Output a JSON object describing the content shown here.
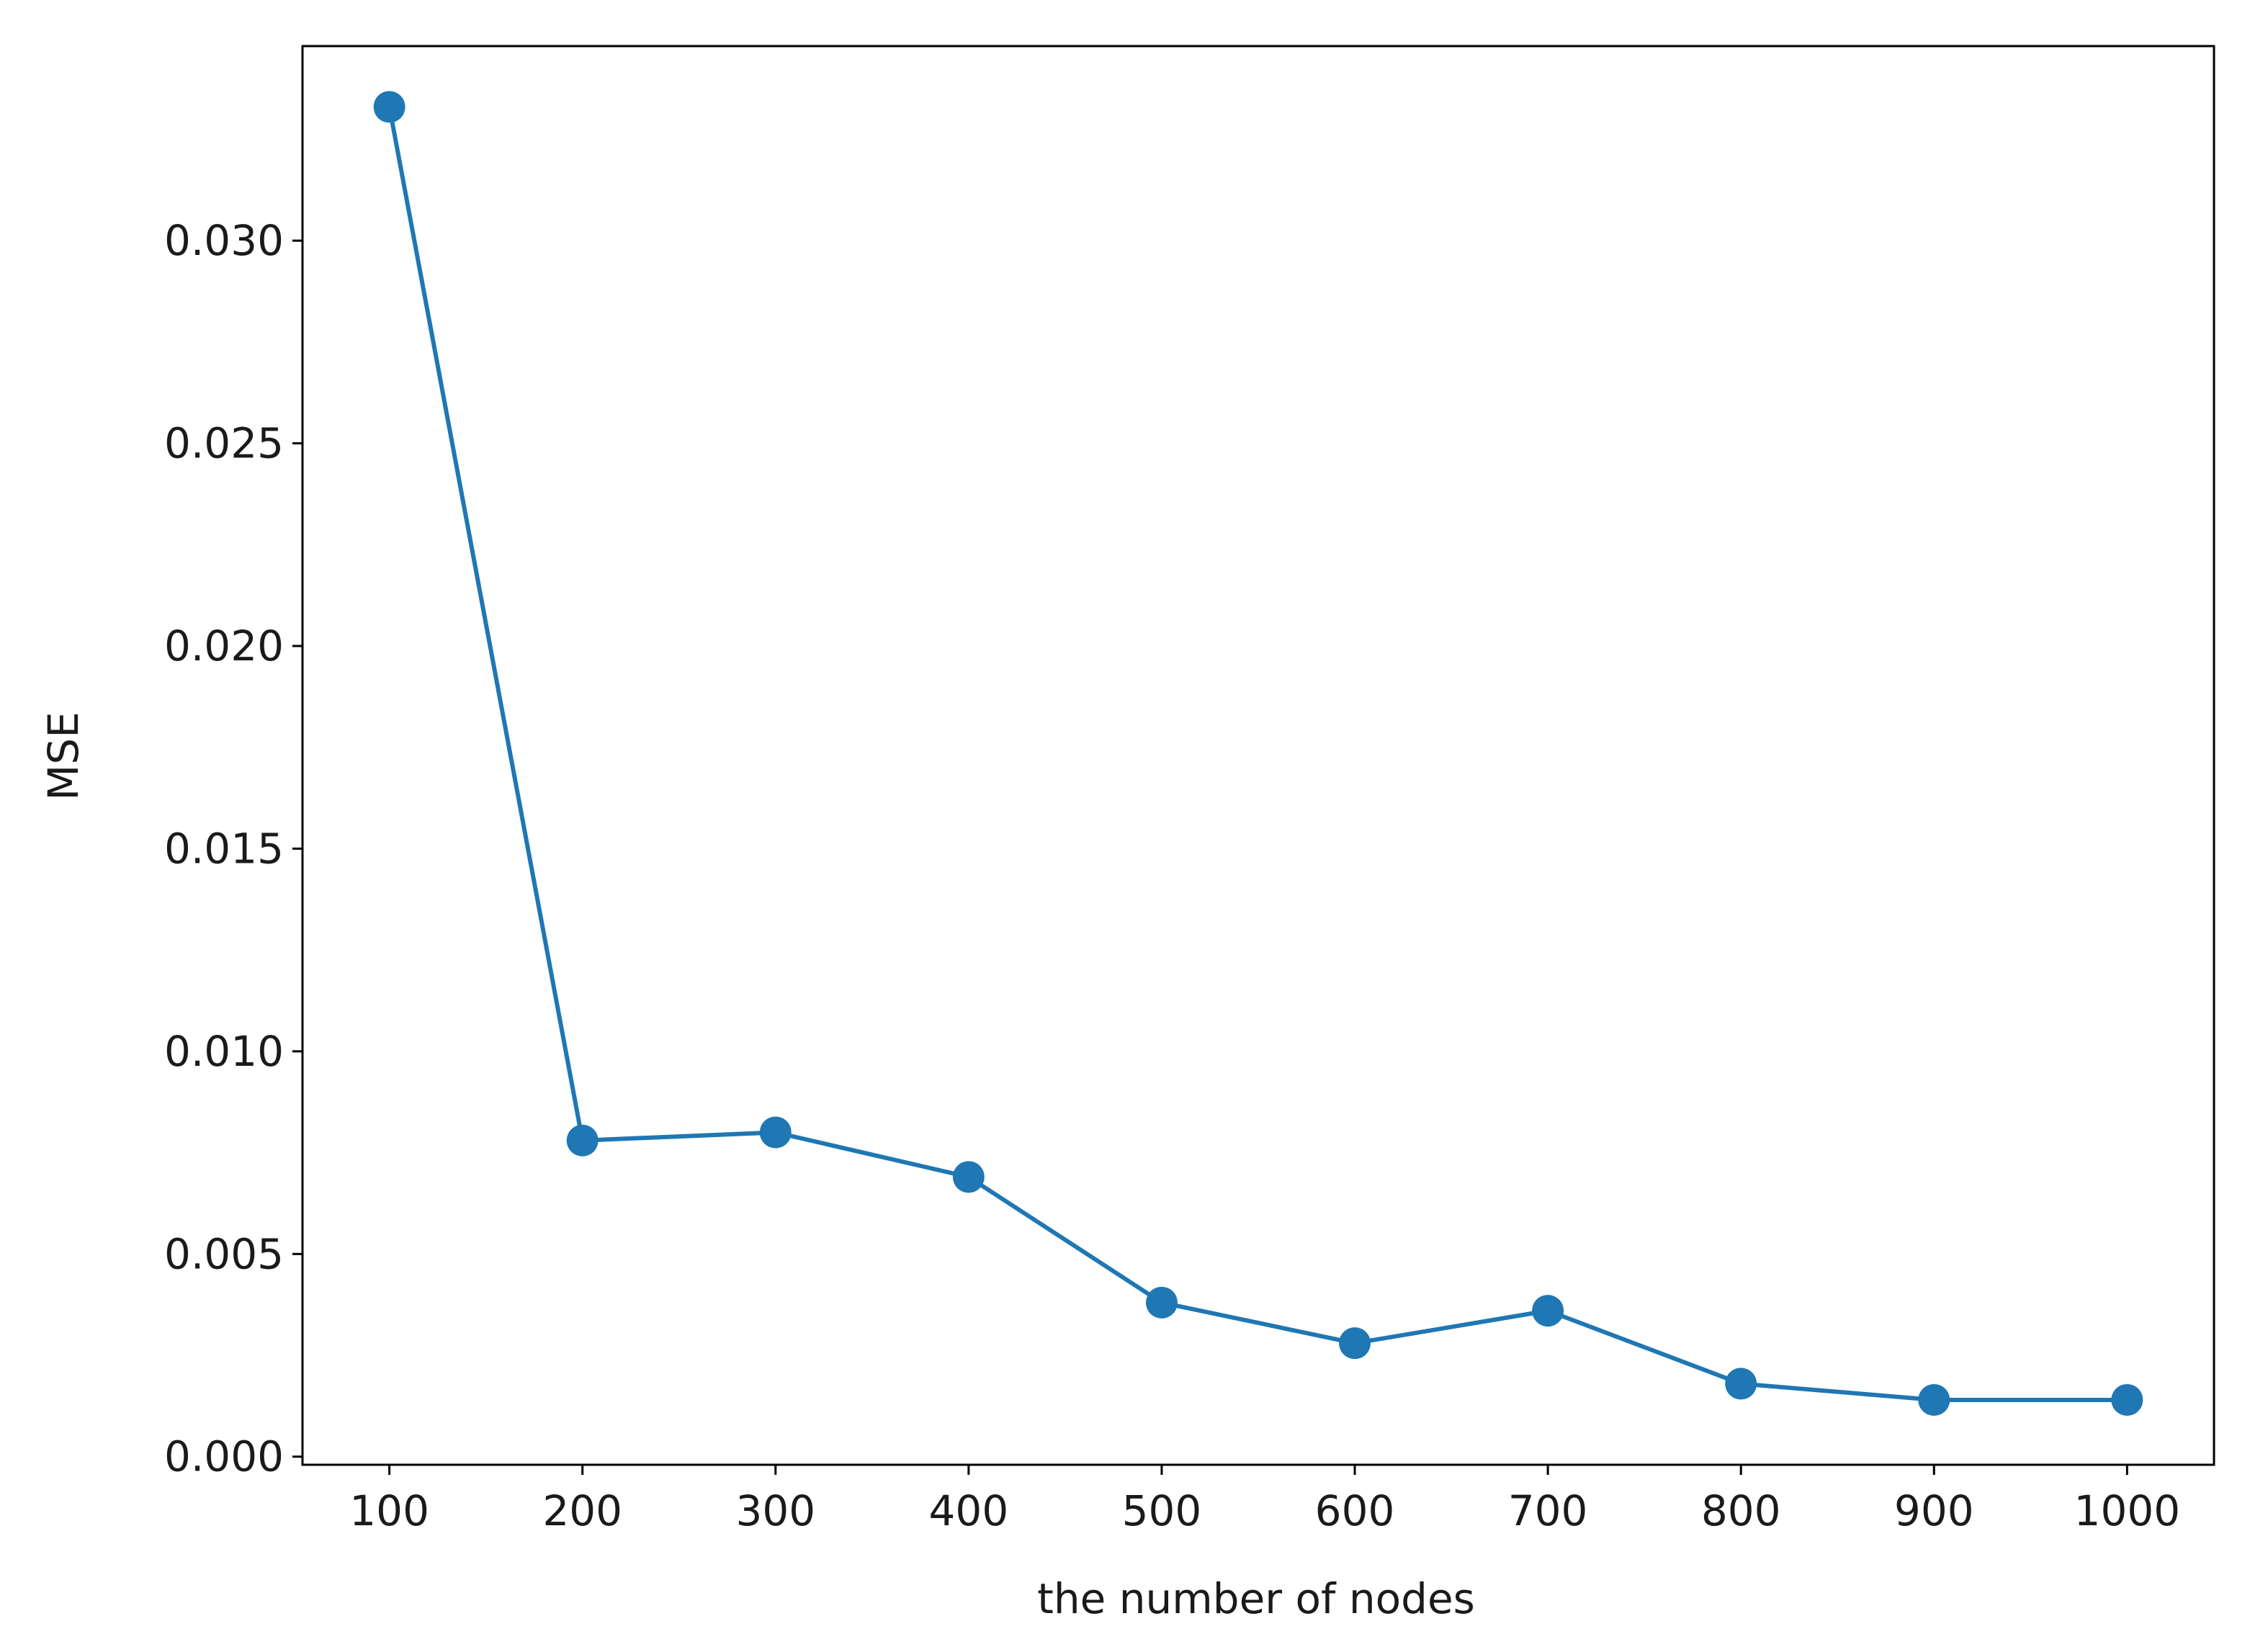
{
  "chart_data": {
    "type": "line",
    "x_label": "the number of nodes",
    "y_label": "MSE",
    "x": [
      100,
      200,
      300,
      400,
      500,
      600,
      700,
      800,
      900,
      1000
    ],
    "series": [
      {
        "color": "#1f77b4",
        "values": [
          0.0333,
          0.0078,
          0.008,
          0.0069,
          0.0038,
          0.0028,
          0.0036,
          0.0018,
          0.0014,
          0.0014
        ]
      }
    ],
    "xlim": [
      55,
      1045
    ],
    "ylim": [
      -0.0002,
      0.0348
    ],
    "xticks": [
      100,
      200,
      300,
      400,
      500,
      600,
      700,
      800,
      900,
      1000
    ],
    "yticks": [
      {
        "value": 0,
        "label": "0.000"
      },
      {
        "value": 0.005,
        "label": "0.005"
      },
      {
        "value": 0.01,
        "label": "0.010"
      },
      {
        "value": 0.015,
        "label": "0.015"
      },
      {
        "value": 0.02,
        "label": "0.020"
      },
      {
        "value": 0.025,
        "label": "0.025"
      },
      {
        "value": 0.03,
        "label": "0.030"
      }
    ],
    "grid": false,
    "markers": true
  }
}
